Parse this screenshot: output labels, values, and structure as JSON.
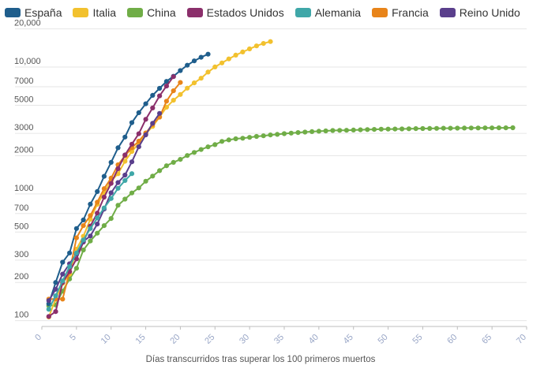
{
  "chart_data": {
    "type": "line",
    "title": "",
    "xlabel": "Días transcurridos tras superar los 100 primeros muertos",
    "ylabel": "",
    "yscale": "log",
    "xlim": [
      0,
      70
    ],
    "ylim": [
      90,
      22000
    ],
    "legend_position": "top-left",
    "x_ticks": [
      0,
      5,
      10,
      15,
      20,
      25,
      30,
      35,
      40,
      45,
      50,
      55,
      60,
      65,
      70
    ],
    "y_ticks": [
      {
        "value": 100,
        "label": "100"
      },
      {
        "value": 200,
        "label": "200"
      },
      {
        "value": 300,
        "label": "300"
      },
      {
        "value": 500,
        "label": "500"
      },
      {
        "value": 700,
        "label": "700"
      },
      {
        "value": 1000,
        "label": "1000"
      },
      {
        "value": 2000,
        "label": "2000"
      },
      {
        "value": 3000,
        "label": "3000"
      },
      {
        "value": 5000,
        "label": "5000"
      },
      {
        "value": 7000,
        "label": "7000"
      },
      {
        "value": 10000,
        "label": "10,000"
      },
      {
        "value": 20000,
        "label": "20,000"
      }
    ],
    "series": [
      {
        "name": "China",
        "color": "#70ad47",
        "values": [
          131,
          133,
          171,
          213,
          259,
          361,
          425,
          490,
          562,
          639,
          813,
          909,
          1017,
          1114,
          1259,
          1381,
          1524,
          1666,
          1772,
          1870,
          2006,
          2121,
          2239,
          2348,
          2445,
          2595,
          2666,
          2718,
          2747,
          2791,
          2838,
          2873,
          2915,
          2946,
          2983,
          3013,
          3044,
          3070,
          3097,
          3119,
          3136,
          3158,
          3169,
          3176,
          3189,
          3199,
          3213,
          3226,
          3237,
          3245,
          3249,
          3253,
          3261,
          3270,
          3277,
          3281,
          3287,
          3292,
          3295,
          3300,
          3304,
          3308,
          3309,
          3311,
          3312,
          3316,
          3318,
          3322
        ]
      },
      {
        "name": "Italia",
        "color": "#f2c12e",
        "values": [
          107,
          148,
          197,
          233,
          366,
          463,
          631,
          827,
          1016,
          1266,
          1441,
          1809,
          2158,
          2503,
          2978,
          3405,
          4032,
          4825,
          5476,
          6077,
          6820,
          7503,
          8165,
          9134,
          10023,
          10779,
          11591,
          12428,
          13155,
          13915,
          14681,
          15362,
          15887
        ]
      },
      {
        "name": "España",
        "color": "#1f5e8c",
        "values": [
          136,
          200,
          289,
          342,
          533,
          623,
          830,
          1043,
          1375,
          1772,
          2311,
          2808,
          3647,
          4365,
          5138,
          5982,
          6803,
          7716,
          8464,
          9387,
          10348,
          11198,
          11947,
          12641
        ]
      },
      {
        "name": "Francia",
        "color": "#e8841a",
        "values": [
          148,
          148,
          148,
          243,
          450,
          562,
          674,
          860,
          1100,
          1331,
          1696,
          1995,
          2314,
          2606,
          3024,
          3523,
          4032,
          5387,
          6507,
          7560
        ]
      },
      {
        "name": "Estados Unidos",
        "color": "#8b2f6b",
        "values": [
          108,
          118,
          200,
          244,
          307,
          417,
          557,
          706,
          942,
          1209,
          1581,
          2026,
          2467,
          2978,
          3873,
          4757,
          5926,
          7087,
          8407
        ]
      },
      {
        "name": "Reino Unido",
        "color": "#5a3f8c",
        "values": [
          144,
          177,
          233,
          281,
          335,
          422,
          465,
          578,
          759,
          1019,
          1228,
          1408,
          1789,
          2352,
          2921,
          3605,
          4313
        ]
      },
      {
        "name": "Alemania",
        "color": "#3fa7a8",
        "values": [
          123,
          157,
          206,
          267,
          342,
          433,
          533,
          645,
          775,
          920,
          1107,
          1275,
          1444
        ]
      }
    ]
  },
  "legend": [
    {
      "label": "España",
      "color": "#1f5e8c"
    },
    {
      "label": "Italia",
      "color": "#f2c12e"
    },
    {
      "label": "China",
      "color": "#70ad47"
    },
    {
      "label": "Estados Unidos",
      "color": "#8b2f6b"
    },
    {
      "label": "Alemania",
      "color": "#3fa7a8"
    },
    {
      "label": "Francia",
      "color": "#e8841a"
    },
    {
      "label": "Reino Unido",
      "color": "#5a3f8c"
    }
  ]
}
